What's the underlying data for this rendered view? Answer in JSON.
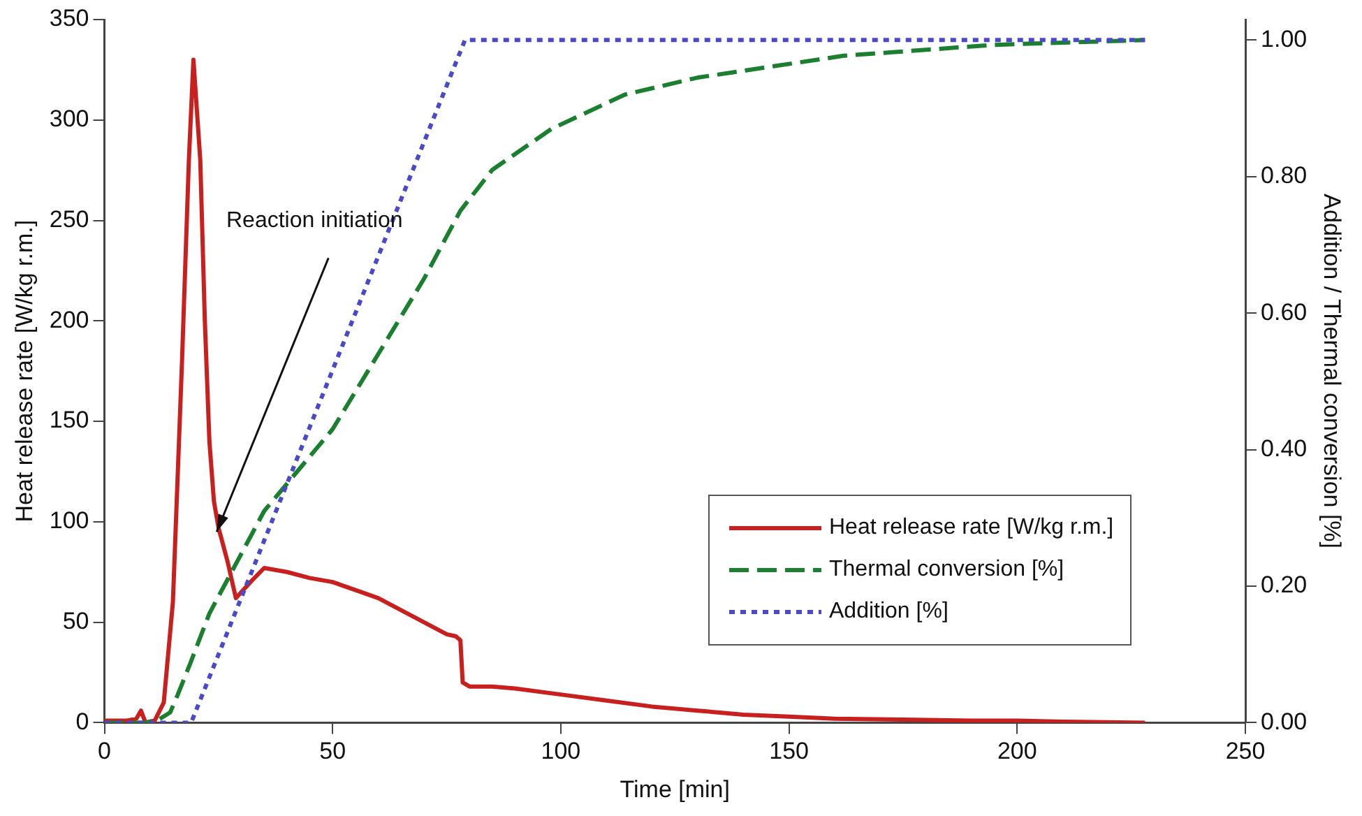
{
  "chart_data": {
    "type": "line",
    "xlabel": "Time [min]",
    "ylabel": "Heat release rate [W/kg r.m.]",
    "y2label": "Addition / Thermal conversion [%]",
    "xlim": [
      0,
      250
    ],
    "xticks": [
      0,
      50,
      100,
      150,
      200,
      250
    ],
    "ylim": [
      0,
      350
    ],
    "yticks": [
      0,
      50,
      100,
      150,
      200,
      250,
      300,
      350
    ],
    "y2lim": [
      0,
      1.03
    ],
    "y2ticks": [
      {
        "value": 0,
        "label": "0.00"
      },
      {
        "value": 0.2,
        "label": "0.20"
      },
      {
        "value": 0.4,
        "label": "0.40"
      },
      {
        "value": 0.6,
        "label": "0.60"
      },
      {
        "value": 0.8,
        "label": "0.80"
      },
      {
        "value": 1,
        "label": "1.00"
      }
    ],
    "grid": false,
    "legend": "bottom right",
    "marker": "none",
    "annotations": [
      {
        "text": "Reaction initiation",
        "x": 24.6,
        "y": 95
      }
    ],
    "series": [
      {
        "name": "Heat release rate [W/kg r.m.]",
        "color": "#c8201e",
        "line_style": "solid",
        "x": [
          0,
          5,
          7,
          8,
          9,
          11,
          13,
          15,
          17,
          18.5,
          19.5,
          21,
          22,
          23,
          24,
          25,
          27,
          28.8,
          30,
          32,
          35,
          40,
          45,
          50,
          55,
          60,
          65,
          70,
          75,
          77,
          78,
          78.5,
          80,
          85,
          90,
          100,
          110,
          120,
          130,
          140,
          150,
          160,
          175,
          190,
          200,
          210,
          228
        ],
        "values": [
          1,
          1,
          2,
          6,
          0,
          1,
          10,
          60,
          180,
          280,
          330,
          280,
          200,
          140,
          110,
          97,
          80,
          62,
          65,
          70,
          77,
          75,
          72,
          70,
          66,
          62,
          56,
          50,
          44,
          43,
          41,
          20,
          18,
          18,
          17,
          14,
          11,
          8,
          6,
          4,
          3,
          2,
          1.5,
          1,
          1,
          0.5,
          0
        ]
      },
      {
        "name": "Thermal conversion [%]",
        "color": "#1a7f2e",
        "line_style": "dashed",
        "axis": "y2",
        "x": [
          0,
          9,
          12,
          14.4,
          16,
          18.7,
          23,
          27,
          35,
          50,
          60,
          70,
          78,
          85,
          98,
          114,
          130,
          162,
          195,
          228
        ],
        "values": [
          0,
          0,
          0.005,
          0.015,
          0.04,
          0.085,
          0.16,
          0.21,
          0.31,
          0.43,
          0.54,
          0.65,
          0.75,
          0.81,
          0.87,
          0.92,
          0.945,
          0.977,
          0.993,
          1.0
        ]
      },
      {
        "name": "Addition [%]",
        "color": "#4a4ac8",
        "line_style": "dotted",
        "axis": "y2",
        "x": [
          0,
          19,
          79,
          228
        ],
        "values": [
          0,
          0,
          1,
          1
        ]
      }
    ]
  }
}
